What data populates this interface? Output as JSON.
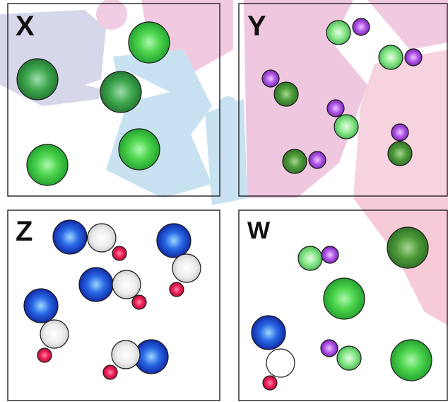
{
  "panels": [
    {
      "id": "X",
      "label": "X"
    },
    {
      "id": "Y",
      "label": "Y"
    },
    {
      "id": "Z",
      "label": "Z"
    },
    {
      "id": "W",
      "label": "W"
    }
  ],
  "colors": {
    "green": "#3fcf3f",
    "green_dark": "#3a9a4a",
    "green_light": "#6ef06e",
    "purple": "#b044e6",
    "blue": "#1c3fd6",
    "white_gray": "#ececec",
    "red": "#e8184c",
    "panel_border": "#222222",
    "bg_pink": "#e8a0c8",
    "bg_blue": "#a8d4ec",
    "bg_lavender": "#c8c8e4",
    "bg_rose": "#f2b8c8"
  }
}
